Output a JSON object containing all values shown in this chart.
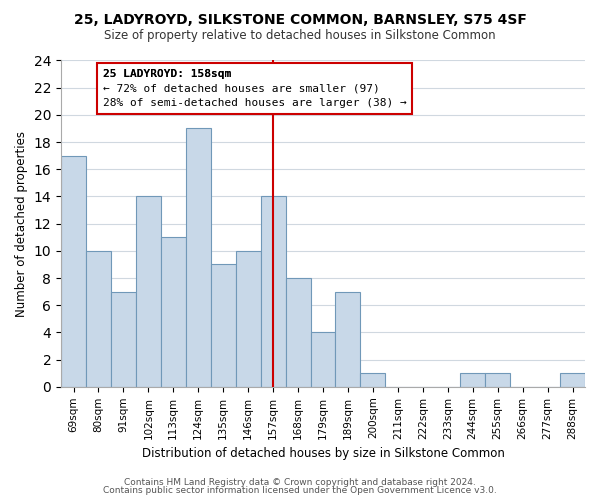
{
  "title": "25, LADYROYD, SILKSTONE COMMON, BARNSLEY, S75 4SF",
  "subtitle": "Size of property relative to detached houses in Silkstone Common",
  "xlabel": "Distribution of detached houses by size in Silkstone Common",
  "ylabel": "Number of detached properties",
  "bar_labels": [
    "69sqm",
    "80sqm",
    "91sqm",
    "102sqm",
    "113sqm",
    "124sqm",
    "135sqm",
    "146sqm",
    "157sqm",
    "168sqm",
    "179sqm",
    "189sqm",
    "200sqm",
    "211sqm",
    "222sqm",
    "233sqm",
    "244sqm",
    "255sqm",
    "266sqm",
    "277sqm",
    "288sqm"
  ],
  "bar_values": [
    17,
    10,
    7,
    14,
    11,
    19,
    9,
    10,
    14,
    8,
    4,
    7,
    1,
    0,
    0,
    0,
    1,
    1,
    0,
    0,
    1
  ],
  "bar_color": "#c8d8e8",
  "bar_edge_color": "#7098b8",
  "reference_line_x": 8,
  "ylim": [
    0,
    24
  ],
  "yticks": [
    0,
    2,
    4,
    6,
    8,
    10,
    12,
    14,
    16,
    18,
    20,
    22,
    24
  ],
  "annotation_title": "25 LADYROYD: 158sqm",
  "annotation_line1": "← 72% of detached houses are smaller (97)",
  "annotation_line2": "28% of semi-detached houses are larger (38) →",
  "annotation_box_color": "#ffffff",
  "annotation_box_edge": "#cc0000",
  "vline_color": "#cc0000",
  "footnote1": "Contains HM Land Registry data © Crown copyright and database right 2024.",
  "footnote2": "Contains public sector information licensed under the Open Government Licence v3.0.",
  "background_color": "#ffffff",
  "grid_color": "#d0d8e0"
}
